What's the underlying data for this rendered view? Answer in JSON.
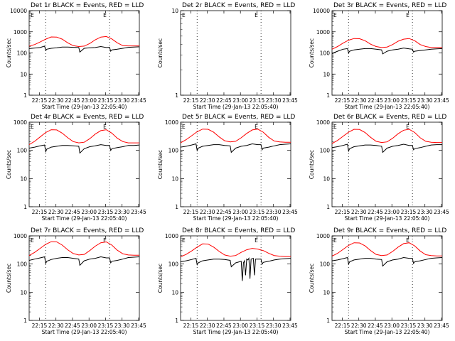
{
  "figure": {
    "xtick_labels": [
      "22:15",
      "22:30",
      "22:45",
      "23:00",
      "23:15",
      "23:30",
      "23:45"
    ],
    "ytick_labels_main": [
      "1",
      "10",
      "100",
      "1000",
      "10000"
    ],
    "ytick_labels_det2": [
      "1",
      "10"
    ],
    "xlabel": "Start Time (29-Jan-13 22:05:40)",
    "ylabel": "Counts/sec",
    "corner_marks": [
      "E",
      "E"
    ],
    "colors": {
      "events": "#000000",
      "lld": "#ff0000",
      "axes": "#000000",
      "background": "#ffffff"
    }
  },
  "chart_data": [
    {
      "panel": "det1r",
      "title": "Det 1r BLACK = Events, RED = LLD",
      "type": "line",
      "x_unit": "minutes after 22:05:40",
      "xlim": [
        0,
        100
      ],
      "ylim": [
        1,
        10000
      ],
      "yscale": "log",
      "grid": false,
      "vertical_dotted_lines": [
        15,
        73
      ],
      "series": [
        {
          "name": "BLACK = Events",
          "color": "#000000",
          "x": [
            0,
            5,
            10,
            14,
            15,
            16,
            20,
            25,
            30,
            35,
            40,
            45,
            46,
            50,
            55,
            60,
            65,
            70,
            73,
            74,
            75,
            80,
            85,
            90,
            95,
            100
          ],
          "y": [
            160,
            170,
            180,
            210,
            130,
            150,
            165,
            175,
            190,
            190,
            185,
            180,
            110,
            165,
            175,
            180,
            200,
            180,
            185,
            120,
            140,
            150,
            165,
            185,
            190,
            195
          ]
        },
        {
          "name": "RED = LLD",
          "color": "#ff0000",
          "x": [
            0,
            5,
            10,
            15,
            20,
            25,
            30,
            35,
            40,
            45,
            50,
            55,
            60,
            65,
            70,
            75,
            80,
            85,
            90,
            95,
            100
          ],
          "y": [
            210,
            250,
            330,
            450,
            570,
            560,
            450,
            300,
            220,
            200,
            210,
            280,
            420,
            560,
            600,
            460,
            300,
            220,
            215,
            215,
            215
          ]
        }
      ]
    },
    {
      "panel": "det2r",
      "title": "Det 2r BLACK = Events, RED = LLD",
      "type": "line",
      "x_unit": "minutes after 22:05:40",
      "xlim": [
        0,
        100
      ],
      "ylim": [
        1,
        10
      ],
      "yscale": "log",
      "grid": false,
      "vertical_dotted_lines": [
        15,
        73
      ],
      "series": []
    },
    {
      "panel": "det3r",
      "title": "Det 3r BLACK = Events, RED = LLD",
      "type": "line",
      "x_unit": "minutes after 22:05:40",
      "xlim": [
        0,
        100
      ],
      "ylim": [
        1,
        10000
      ],
      "yscale": "log",
      "grid": false,
      "vertical_dotted_lines": [
        15,
        73
      ],
      "series": [
        {
          "name": "BLACK = Events",
          "color": "#000000",
          "x": [
            0,
            5,
            10,
            14,
            15,
            16,
            20,
            25,
            30,
            35,
            40,
            45,
            46,
            50,
            55,
            60,
            65,
            70,
            73,
            74,
            75,
            80,
            85,
            90,
            95,
            100
          ],
          "y": [
            95,
            120,
            150,
            160,
            100,
            120,
            140,
            150,
            160,
            160,
            150,
            140,
            90,
            120,
            140,
            150,
            170,
            155,
            150,
            110,
            120,
            130,
            140,
            150,
            155,
            160
          ]
        },
        {
          "name": "RED = LLD",
          "color": "#ff0000",
          "x": [
            0,
            5,
            10,
            15,
            20,
            25,
            30,
            35,
            40,
            45,
            50,
            55,
            60,
            65,
            70,
            75,
            80,
            85,
            90,
            95,
            100
          ],
          "y": [
            150,
            200,
            290,
            400,
            480,
            470,
            380,
            260,
            200,
            180,
            190,
            250,
            360,
            450,
            480,
            380,
            250,
            200,
            180,
            180,
            180
          ]
        }
      ]
    },
    {
      "panel": "det4r",
      "title": "Det 4r BLACK = Events, RED = LLD",
      "type": "line",
      "x_unit": "minutes after 22:05:40",
      "xlim": [
        0,
        100
      ],
      "ylim": [
        1,
        1000
      ],
      "yscale": "log",
      "grid": false,
      "vertical_dotted_lines": [
        15,
        73
      ],
      "series": [
        {
          "name": "BLACK = Events",
          "color": "#000000",
          "x": [
            0,
            5,
            10,
            14,
            15,
            16,
            20,
            25,
            30,
            35,
            40,
            45,
            46,
            50,
            55,
            60,
            65,
            70,
            73,
            74,
            75,
            80,
            85,
            90,
            95,
            100
          ],
          "y": [
            120,
            130,
            145,
            155,
            90,
            110,
            130,
            140,
            150,
            150,
            145,
            140,
            80,
            115,
            135,
            145,
            160,
            150,
            150,
            100,
            115,
            125,
            135,
            150,
            150,
            155
          ]
        },
        {
          "name": "RED = LLD",
          "color": "#ff0000",
          "x": [
            0,
            5,
            10,
            15,
            20,
            25,
            30,
            35,
            40,
            45,
            50,
            55,
            60,
            65,
            70,
            75,
            80,
            85,
            90,
            95,
            100
          ],
          "y": [
            160,
            210,
            300,
            430,
            540,
            530,
            410,
            280,
            205,
            185,
            195,
            260,
            380,
            500,
            540,
            410,
            270,
            205,
            185,
            185,
            185
          ]
        }
      ]
    },
    {
      "panel": "det5r",
      "title": "Det 5r BLACK = Events, RED = LLD",
      "type": "line",
      "x_unit": "minutes after 22:05:40",
      "xlim": [
        0,
        100
      ],
      "ylim": [
        1,
        1000
      ],
      "yscale": "log",
      "grid": false,
      "vertical_dotted_lines": [
        15,
        73
      ],
      "series": [
        {
          "name": "BLACK = Events",
          "color": "#000000",
          "x": [
            0,
            5,
            10,
            14,
            15,
            16,
            20,
            25,
            30,
            35,
            40,
            45,
            46,
            50,
            55,
            60,
            65,
            70,
            73,
            74,
            75,
            80,
            85,
            90,
            95,
            100
          ],
          "y": [
            130,
            140,
            155,
            170,
            100,
            120,
            140,
            150,
            160,
            160,
            150,
            145,
            85,
            120,
            140,
            150,
            170,
            160,
            160,
            105,
            120,
            130,
            145,
            160,
            165,
            170
          ]
        },
        {
          "name": "RED = LLD",
          "color": "#ff0000",
          "x": [
            0,
            5,
            10,
            15,
            20,
            25,
            30,
            35,
            40,
            45,
            50,
            55,
            60,
            65,
            70,
            75,
            80,
            85,
            90,
            95,
            100
          ],
          "y": [
            185,
            240,
            330,
            460,
            570,
            560,
            440,
            300,
            220,
            200,
            210,
            280,
            400,
            530,
            570,
            440,
            290,
            215,
            200,
            195,
            195
          ]
        }
      ]
    },
    {
      "panel": "det6r",
      "title": "Det 6r BLACK = Events, RED = LLD",
      "type": "line",
      "x_unit": "minutes after 22:05:40",
      "xlim": [
        0,
        100
      ],
      "ylim": [
        1,
        1000
      ],
      "yscale": "log",
      "grid": false,
      "vertical_dotted_lines": [
        15,
        73
      ],
      "series": [
        {
          "name": "BLACK = Events",
          "color": "#000000",
          "x": [
            0,
            5,
            10,
            14,
            15,
            16,
            20,
            25,
            30,
            35,
            40,
            45,
            46,
            50,
            55,
            60,
            65,
            70,
            73,
            74,
            75,
            80,
            85,
            90,
            95,
            100
          ],
          "y": [
            125,
            135,
            150,
            165,
            95,
            115,
            135,
            145,
            155,
            155,
            150,
            140,
            85,
            120,
            140,
            150,
            165,
            150,
            150,
            105,
            115,
            125,
            140,
            155,
            160,
            160
          ]
        },
        {
          "name": "RED = LLD",
          "color": "#ff0000",
          "x": [
            0,
            5,
            10,
            15,
            20,
            25,
            30,
            35,
            40,
            45,
            50,
            55,
            60,
            65,
            70,
            75,
            80,
            85,
            90,
            95,
            100
          ],
          "y": [
            175,
            225,
            315,
            440,
            560,
            550,
            430,
            290,
            210,
            190,
            200,
            270,
            390,
            520,
            560,
            430,
            280,
            210,
            195,
            190,
            190
          ]
        }
      ]
    },
    {
      "panel": "det7r",
      "title": "Det 7r BLACK = Events, RED = LLD",
      "type": "line",
      "x_unit": "minutes after 22:05:40",
      "xlim": [
        0,
        100
      ],
      "ylim": [
        1,
        1000
      ],
      "yscale": "log",
      "grid": false,
      "vertical_dotted_lines": [
        15,
        73
      ],
      "series": [
        {
          "name": "BLACK = Events",
          "color": "#000000",
          "x": [
            0,
            5,
            10,
            14,
            15,
            16,
            20,
            25,
            30,
            35,
            40,
            45,
            46,
            50,
            55,
            60,
            65,
            70,
            73,
            74,
            75,
            80,
            85,
            90,
            95,
            100
          ],
          "y": [
            135,
            150,
            165,
            180,
            105,
            125,
            145,
            160,
            170,
            170,
            160,
            150,
            90,
            130,
            150,
            160,
            180,
            165,
            165,
            110,
            125,
            135,
            150,
            170,
            175,
            180
          ]
        },
        {
          "name": "RED = LLD",
          "color": "#ff0000",
          "x": [
            0,
            5,
            10,
            15,
            20,
            25,
            30,
            35,
            40,
            45,
            50,
            55,
            60,
            65,
            70,
            75,
            80,
            85,
            90,
            95,
            100
          ],
          "y": [
            200,
            260,
            360,
            500,
            620,
            610,
            470,
            320,
            235,
            210,
            220,
            300,
            430,
            570,
            610,
            470,
            310,
            230,
            210,
            205,
            205
          ]
        }
      ]
    },
    {
      "panel": "det8r",
      "title": "Det 8r BLACK = Events, RED = LLD",
      "type": "line",
      "x_unit": "minutes after 22:05:40",
      "xlim": [
        0,
        100
      ],
      "ylim": [
        1,
        1000
      ],
      "yscale": "log",
      "grid": false,
      "vertical_dotted_lines": [
        15,
        73
      ],
      "series": [
        {
          "name": "BLACK = Events",
          "color": "#000000",
          "x": [
            0,
            5,
            10,
            14,
            15,
            16,
            20,
            25,
            30,
            35,
            40,
            45,
            46,
            50,
            55,
            56,
            57,
            58,
            59,
            60,
            61,
            62,
            63,
            64,
            66,
            67,
            68,
            70,
            73,
            74,
            75,
            80,
            85,
            90,
            95,
            100
          ],
          "y": [
            120,
            130,
            145,
            160,
            95,
            110,
            130,
            140,
            150,
            150,
            145,
            135,
            80,
            110,
            125,
            25,
            110,
            130,
            40,
            150,
            140,
            160,
            30,
            150,
            160,
            40,
            150,
            150,
            150,
            100,
            115,
            125,
            140,
            150,
            155,
            160
          ]
        },
        {
          "name": "RED = LLD",
          "color": "#ff0000",
          "x": [
            0,
            5,
            10,
            15,
            20,
            25,
            30,
            35,
            40,
            45,
            50,
            55,
            60,
            65,
            70,
            75,
            80,
            85,
            90,
            95,
            100
          ],
          "y": [
            180,
            220,
            290,
            400,
            520,
            510,
            400,
            280,
            210,
            190,
            200,
            260,
            320,
            360,
            340,
            300,
            240,
            200,
            190,
            185,
            185
          ]
        }
      ]
    },
    {
      "panel": "det9r",
      "title": "Det 9r BLACK = Events, RED = LLD",
      "type": "line",
      "x_unit": "minutes after 22:05:40",
      "xlim": [
        0,
        100
      ],
      "ylim": [
        1,
        1000
      ],
      "yscale": "log",
      "grid": false,
      "vertical_dotted_lines": [
        15,
        73
      ],
      "series": [
        {
          "name": "BLACK = Events",
          "color": "#000000",
          "x": [
            0,
            5,
            10,
            14,
            15,
            16,
            20,
            25,
            30,
            35,
            40,
            45,
            46,
            50,
            55,
            60,
            65,
            70,
            73,
            74,
            75,
            80,
            85,
            90,
            95,
            100
          ],
          "y": [
            130,
            140,
            155,
            170,
            100,
            120,
            140,
            150,
            160,
            160,
            150,
            145,
            85,
            120,
            140,
            150,
            170,
            160,
            160,
            105,
            120,
            130,
            145,
            160,
            165,
            170
          ]
        },
        {
          "name": "RED = LLD",
          "color": "#ff0000",
          "x": [
            0,
            5,
            10,
            15,
            20,
            25,
            30,
            35,
            40,
            45,
            50,
            55,
            60,
            65,
            70,
            75,
            80,
            85,
            90,
            95,
            100
          ],
          "y": [
            190,
            240,
            330,
            460,
            570,
            560,
            440,
            300,
            220,
            200,
            210,
            280,
            400,
            530,
            570,
            440,
            290,
            215,
            200,
            195,
            195
          ]
        }
      ]
    }
  ]
}
